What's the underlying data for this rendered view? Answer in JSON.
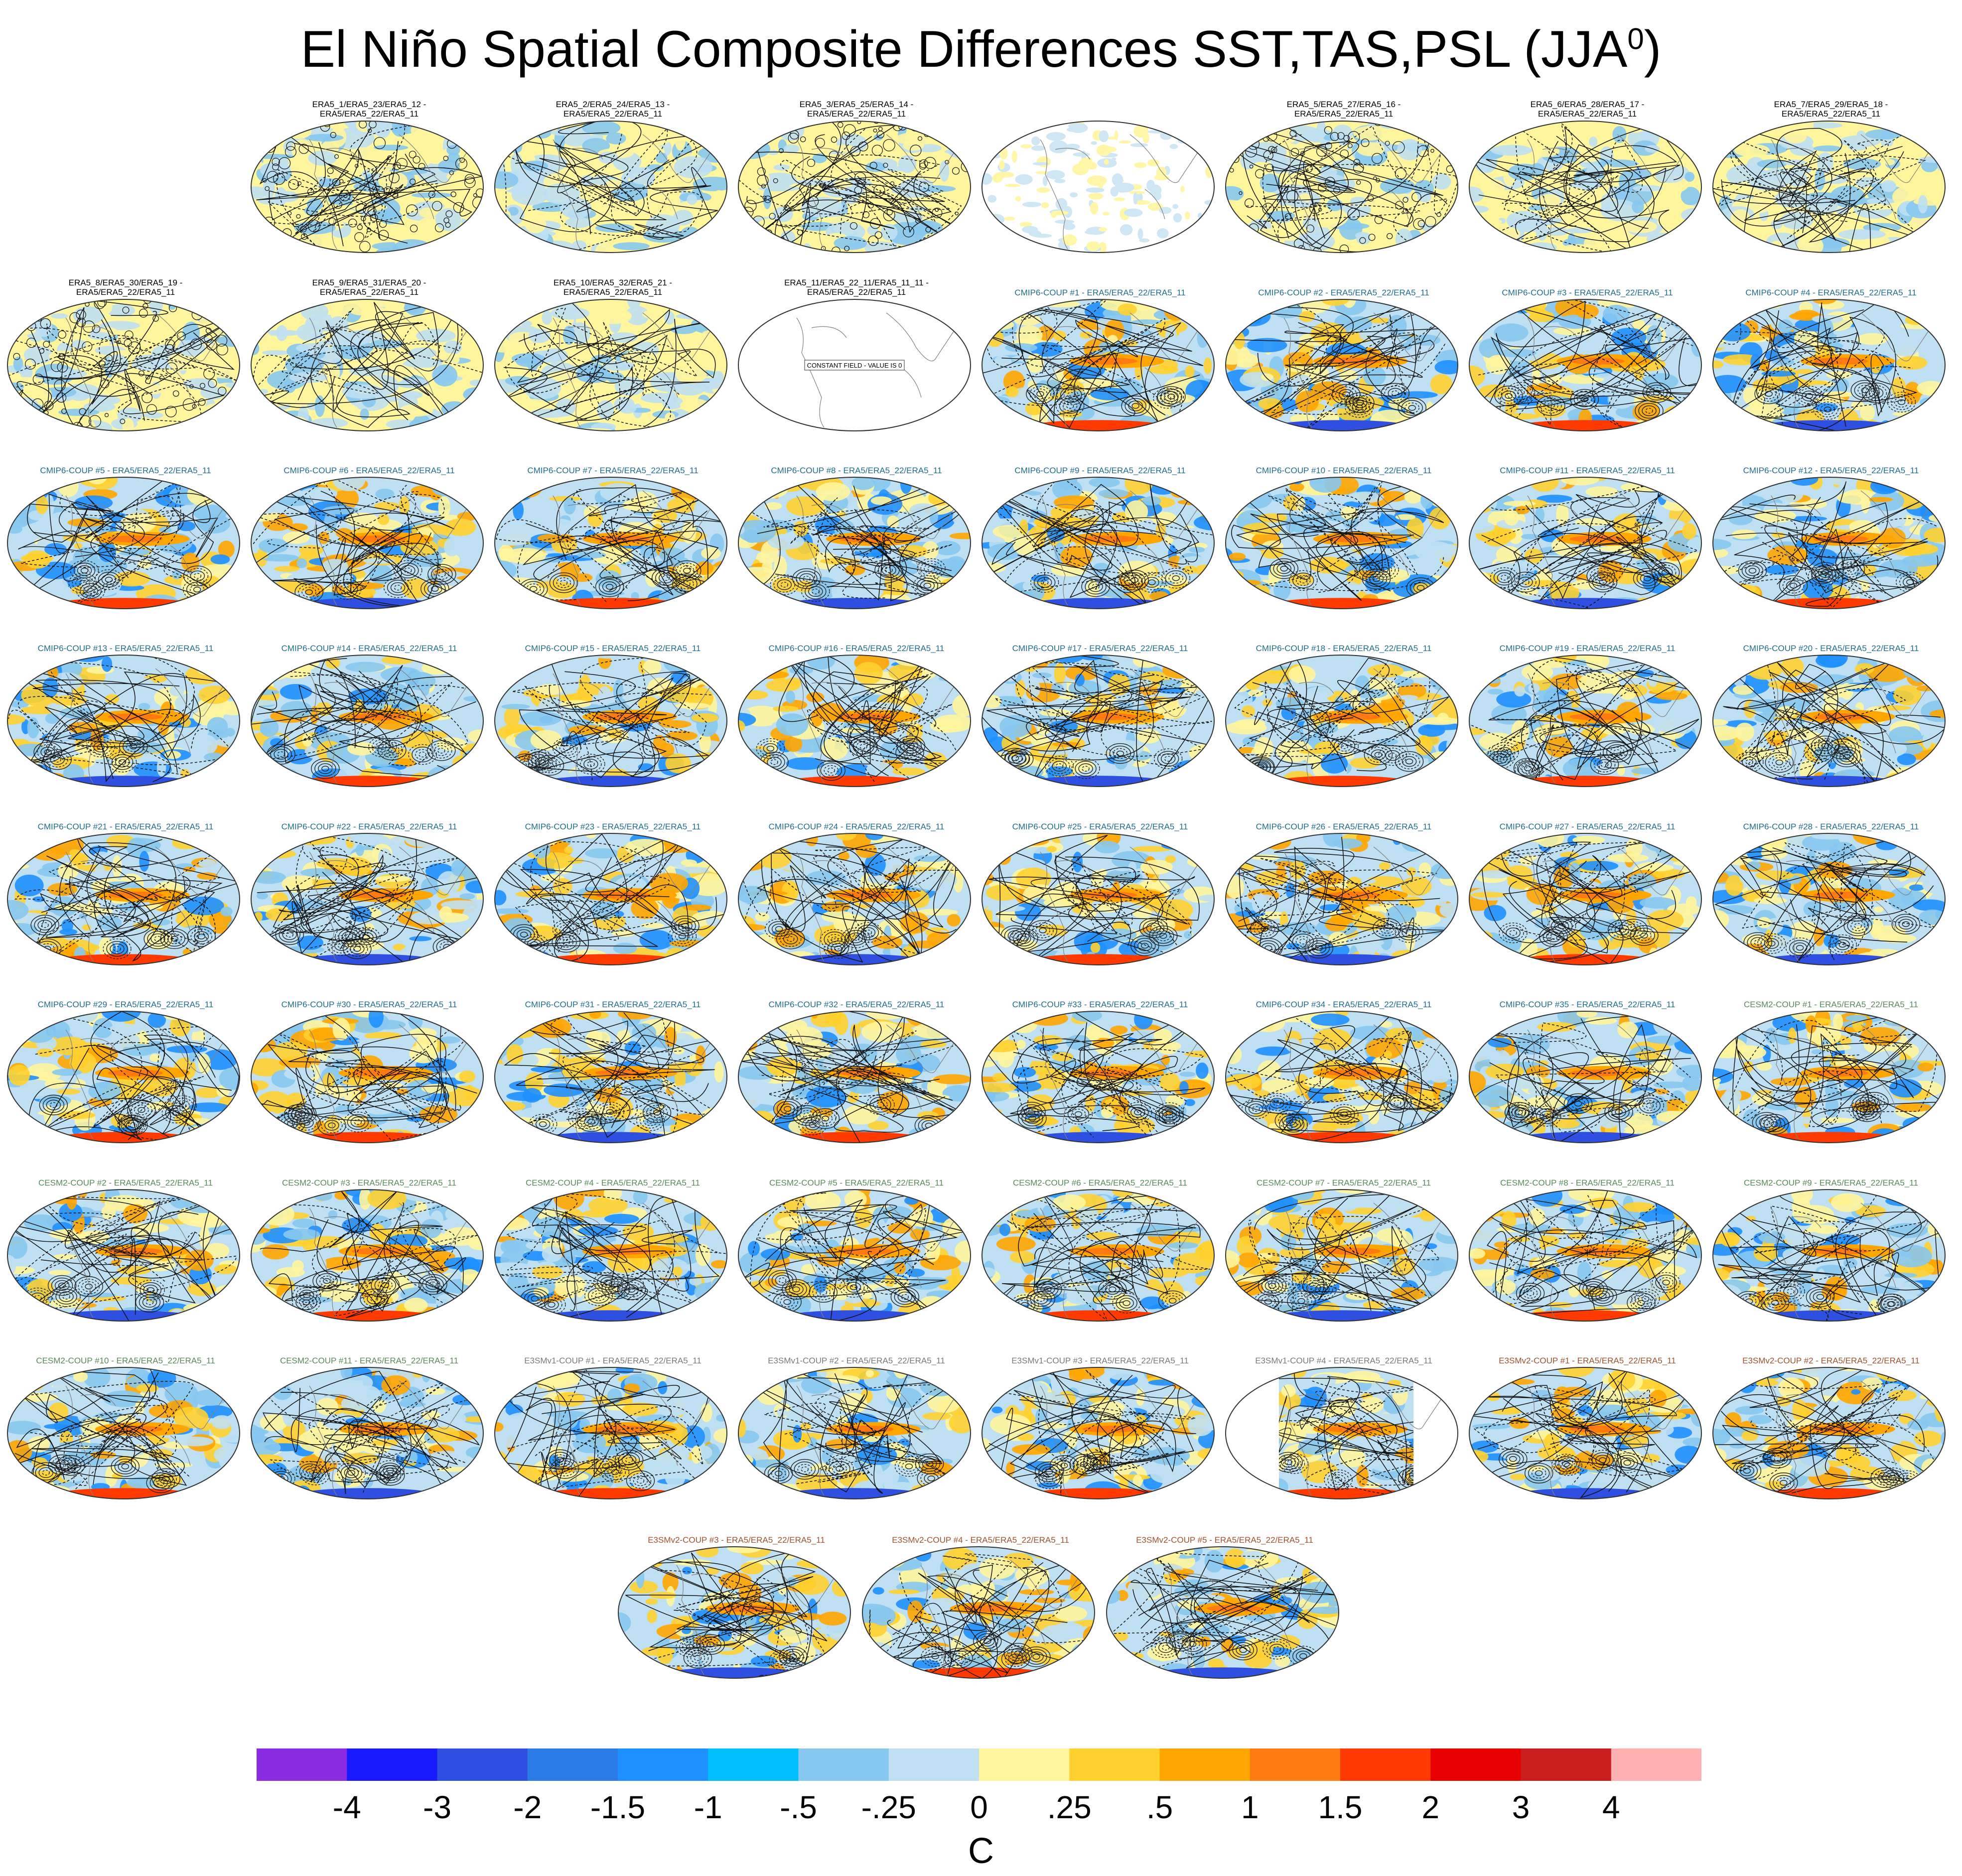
{
  "title": "El Niño Spatial Composite Differences SST,TAS,PSL (JJA",
  "title_sup": "0",
  "title_close": ")",
  "panels": [
    null,
    {
      "title": [
        "ERA5_1/ERA5_23/ERA5_12 -",
        "ERA5/ERA5_22/ERA5_11"
      ],
      "group": "ERA5"
    },
    {
      "title": [
        "ERA5_2/ERA5_24/ERA5_13 -",
        "ERA5/ERA5_22/ERA5_11"
      ],
      "group": "ERA5"
    },
    {
      "title": [
        "ERA5_3/ERA5_25/ERA5_14 -",
        "ERA5/ERA5_22/ERA5_11"
      ],
      "group": "ERA5"
    },
    {
      "title": [
        "",
        ""
      ],
      "group": "ERA5",
      "style": "sparse"
    },
    {
      "title": [
        "ERA5_5/ERA5_27/ERA5_16 -",
        "ERA5/ERA5_22/ERA5_11"
      ],
      "group": "ERA5"
    },
    {
      "title": [
        "ERA5_6/ERA5_28/ERA5_17 -",
        "ERA5/ERA5_22/ERA5_11"
      ],
      "group": "ERA5"
    },
    {
      "title": [
        "ERA5_7/ERA5_29/ERA5_18 -",
        "ERA5/ERA5_22/ERA5_11"
      ],
      "group": "ERA5"
    },
    {
      "title": [
        "ERA5_8/ERA5_30/ERA5_19 -",
        "ERA5/ERA5_22/ERA5_11"
      ],
      "group": "ERA5"
    },
    {
      "title": [
        "ERA5_9/ERA5_31/ERA5_20 -",
        "ERA5/ERA5_22/ERA5_11"
      ],
      "group": "ERA5"
    },
    {
      "title": [
        "ERA5_10/ERA5_32/ERA5_21 -",
        "ERA5/ERA5_22/ERA5_11"
      ],
      "group": "ERA5"
    },
    {
      "title": [
        "ERA5_11/ERA5_22_11/ERA5_11_11 -",
        "ERA5/ERA5_22/ERA5_11"
      ],
      "group": "ERA5",
      "style": "constant",
      "note": "CONSTANT FIELD - VALUE IS 0"
    },
    {
      "title": [
        "CMIP6-COUP #1 - ERA5/ERA5_22/ERA5_11"
      ],
      "group": "CMIP6"
    },
    {
      "title": [
        "CMIP6-COUP #2 - ERA5/ERA5_22/ERA5_11"
      ],
      "group": "CMIP6"
    },
    {
      "title": [
        "CMIP6-COUP #3 - ERA5/ERA5_22/ERA5_11"
      ],
      "group": "CMIP6"
    },
    {
      "title": [
        "CMIP6-COUP #4 - ERA5/ERA5_22/ERA5_11"
      ],
      "group": "CMIP6"
    },
    {
      "title": [
        "CMIP6-COUP #5 - ERA5/ERA5_22/ERA5_11"
      ],
      "group": "CMIP6"
    },
    {
      "title": [
        "CMIP6-COUP #6 - ERA5/ERA5_22/ERA5_11"
      ],
      "group": "CMIP6"
    },
    {
      "title": [
        "CMIP6-COUP #7 - ERA5/ERA5_22/ERA5_11"
      ],
      "group": "CMIP6"
    },
    {
      "title": [
        "CMIP6-COUP #8 - ERA5/ERA5_22/ERA5_11"
      ],
      "group": "CMIP6"
    },
    {
      "title": [
        "CMIP6-COUP #9 - ERA5/ERA5_22/ERA5_11"
      ],
      "group": "CMIP6"
    },
    {
      "title": [
        "CMIP6-COUP #10 - ERA5/ERA5_22/ERA5_11"
      ],
      "group": "CMIP6"
    },
    {
      "title": [
        "CMIP6-COUP #11 - ERA5/ERA5_22/ERA5_11"
      ],
      "group": "CMIP6"
    },
    {
      "title": [
        "CMIP6-COUP #12 - ERA5/ERA5_22/ERA5_11"
      ],
      "group": "CMIP6"
    },
    {
      "title": [
        "CMIP6-COUP #13 - ERA5/ERA5_22/ERA5_11"
      ],
      "group": "CMIP6"
    },
    {
      "title": [
        "CMIP6-COUP #14 - ERA5/ERA5_22/ERA5_11"
      ],
      "group": "CMIP6"
    },
    {
      "title": [
        "CMIP6-COUP #15 - ERA5/ERA5_22/ERA5_11"
      ],
      "group": "CMIP6"
    },
    {
      "title": [
        "CMIP6-COUP #16 - ERA5/ERA5_22/ERA5_11"
      ],
      "group": "CMIP6"
    },
    {
      "title": [
        "CMIP6-COUP #17 - ERA5/ERA5_22/ERA5_11"
      ],
      "group": "CMIP6"
    },
    {
      "title": [
        "CMIP6-COUP #18 - ERA5/ERA5_22/ERA5_11"
      ],
      "group": "CMIP6"
    },
    {
      "title": [
        "CMIP6-COUP #19 - ERA5/ERA5_22/ERA5_11"
      ],
      "group": "CMIP6"
    },
    {
      "title": [
        "CMIP6-COUP #20 - ERA5/ERA5_22/ERA5_11"
      ],
      "group": "CMIP6"
    },
    {
      "title": [
        "CMIP6-COUP #21 - ERA5/ERA5_22/ERA5_11"
      ],
      "group": "CMIP6"
    },
    {
      "title": [
        "CMIP6-COUP #22 - ERA5/ERA5_22/ERA5_11"
      ],
      "group": "CMIP6"
    },
    {
      "title": [
        "CMIP6-COUP #23 - ERA5/ERA5_22/ERA5_11"
      ],
      "group": "CMIP6"
    },
    {
      "title": [
        "CMIP6-COUP #24 - ERA5/ERA5_22/ERA5_11"
      ],
      "group": "CMIP6"
    },
    {
      "title": [
        "CMIP6-COUP #25 - ERA5/ERA5_22/ERA5_11"
      ],
      "group": "CMIP6"
    },
    {
      "title": [
        "CMIP6-COUP #26 - ERA5/ERA5_22/ERA5_11"
      ],
      "group": "CMIP6"
    },
    {
      "title": [
        "CMIP6-COUP #27 - ERA5/ERA5_22/ERA5_11"
      ],
      "group": "CMIP6"
    },
    {
      "title": [
        "CMIP6-COUP #28 - ERA5/ERA5_22/ERA5_11"
      ],
      "group": "CMIP6"
    },
    {
      "title": [
        "CMIP6-COUP #29 - ERA5/ERA5_22/ERA5_11"
      ],
      "group": "CMIP6"
    },
    {
      "title": [
        "CMIP6-COUP #30 - ERA5/ERA5_22/ERA5_11"
      ],
      "group": "CMIP6"
    },
    {
      "title": [
        "CMIP6-COUP #31 - ERA5/ERA5_22/ERA5_11"
      ],
      "group": "CMIP6"
    },
    {
      "title": [
        "CMIP6-COUP #32 - ERA5/ERA5_22/ERA5_11"
      ],
      "group": "CMIP6"
    },
    {
      "title": [
        "CMIP6-COUP #33 - ERA5/ERA5_22/ERA5_11"
      ],
      "group": "CMIP6"
    },
    {
      "title": [
        "CMIP6-COUP #34 - ERA5/ERA5_22/ERA5_11"
      ],
      "group": "CMIP6"
    },
    {
      "title": [
        "CMIP6-COUP #35 - ERA5/ERA5_22/ERA5_11"
      ],
      "group": "CMIP6"
    },
    {
      "title": [
        "CESM2-COUP #1 - ERA5/ERA5_22/ERA5_11"
      ],
      "group": "CESM2"
    },
    {
      "title": [
        "CESM2-COUP #2 - ERA5/ERA5_22/ERA5_11"
      ],
      "group": "CESM2"
    },
    {
      "title": [
        "CESM2-COUP #3 - ERA5/ERA5_22/ERA5_11"
      ],
      "group": "CESM2"
    },
    {
      "title": [
        "CESM2-COUP #4 - ERA5/ERA5_22/ERA5_11"
      ],
      "group": "CESM2"
    },
    {
      "title": [
        "CESM2-COUP #5 - ERA5/ERA5_22/ERA5_11"
      ],
      "group": "CESM2"
    },
    {
      "title": [
        "CESM2-COUP #6 - ERA5/ERA5_22/ERA5_11"
      ],
      "group": "CESM2"
    },
    {
      "title": [
        "CESM2-COUP #7 - ERA5/ERA5_22/ERA5_11"
      ],
      "group": "CESM2"
    },
    {
      "title": [
        "CESM2-COUP #8 - ERA5/ERA5_22/ERA5_11"
      ],
      "group": "CESM2"
    },
    {
      "title": [
        "CESM2-COUP #9 - ERA5/ERA5_22/ERA5_11"
      ],
      "group": "CESM2"
    },
    {
      "title": [
        "CESM2-COUP #10 - ERA5/ERA5_22/ERA5_11"
      ],
      "group": "CESM2"
    },
    {
      "title": [
        "CESM2-COUP #11 - ERA5/ERA5_22/ERA5_11"
      ],
      "group": "CESM2"
    },
    {
      "title": [
        "E3SMv1-COUP #1 - ERA5/ERA5_22/ERA5_11"
      ],
      "group": "E3SMv1"
    },
    {
      "title": [
        "E3SMv1-COUP #2 - ERA5/ERA5_22/ERA5_11"
      ],
      "group": "E3SMv1"
    },
    {
      "title": [
        "E3SMv1-COUP #3 - ERA5/ERA5_22/ERA5_11"
      ],
      "group": "E3SMv1"
    },
    {
      "title": [
        "E3SMv1-COUP #4 - ERA5/ERA5_22/ERA5_11"
      ],
      "group": "E3SMv1",
      "style": "partial"
    },
    {
      "title": [
        "E3SMv2-COUP #1 - ERA5/ERA5_22/ERA5_11"
      ],
      "group": "E3SMv2"
    },
    {
      "title": [
        "E3SMv2-COUP #2 - ERA5/ERA5_22/ERA5_11"
      ],
      "group": "E3SMv2"
    },
    {
      "title": [
        "E3SMv2-COUP #3 - ERA5/ERA5_22/ERA5_11"
      ],
      "group": "E3SMv2"
    },
    {
      "title": [
        "E3SMv2-COUP #4 - ERA5/ERA5_22/ERA5_11"
      ],
      "group": "E3SMv2"
    },
    {
      "title": [
        "E3SMv2-COUP #5 - ERA5/ERA5_22/ERA5_11"
      ],
      "group": "E3SMv2"
    }
  ],
  "group_colors": {
    "ERA5": "#000000",
    "CMIP6": "#1f6e8c",
    "CESM2": "#5a8a5a",
    "E3SMv1": "#7a7a7a",
    "E3SMv2": "#a0522d"
  },
  "colorbar": {
    "colors": [
      "#8b2be2",
      "#1a1aff",
      "#2f4fe0",
      "#2b7be6",
      "#1e90ff",
      "#00bfff",
      "#87c8f0",
      "#bfe0f2",
      "#fff59d",
      "#ffd230",
      "#ffa500",
      "#ff7a10",
      "#ff3a00",
      "#e60000",
      "#c81e1e",
      "#ffb0b0"
    ],
    "labels": [
      "-4",
      "-3",
      "-2",
      "-1.5",
      "-1",
      "-.5",
      "-.25",
      "0",
      ".25",
      ".5",
      "1",
      "1.5",
      "2",
      "3",
      "4"
    ],
    "unit": "C"
  }
}
